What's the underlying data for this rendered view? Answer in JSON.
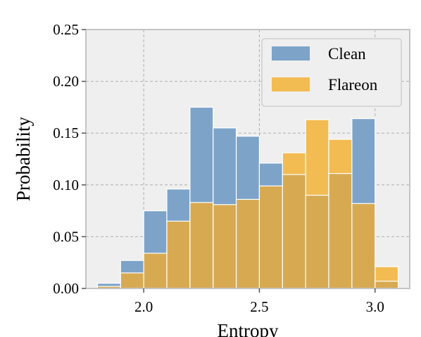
{
  "chart_data": {
    "type": "bar",
    "xlabel": "Entropy",
    "ylabel": "Probability",
    "xlim": [
      1.75,
      3.15
    ],
    "ylim": [
      0,
      0.25
    ],
    "xticks": [
      2.0,
      2.5,
      3.0
    ],
    "xtick_labels": [
      "2.0",
      "2.5",
      "3.0"
    ],
    "yticks": [
      0,
      0.05,
      0.1,
      0.15,
      0.2,
      0.25
    ],
    "ytick_labels": [
      "0.00",
      "0.05",
      "0.10",
      "0.15",
      "0.20",
      "0.25"
    ],
    "grid": true,
    "legend_position": "top-right",
    "bin_edges": [
      1.8,
      1.9,
      2.0,
      2.1,
      2.2,
      2.3,
      2.4,
      2.5,
      2.6,
      2.7,
      2.8,
      2.9,
      3.0,
      3.1
    ],
    "series": [
      {
        "name": "Clean",
        "color": "#7da3c8",
        "values": [
          0.005,
          0.027,
          0.075,
          0.096,
          0.175,
          0.155,
          0.147,
          0.121,
          0.11,
          0.09,
          0.111,
          0.164,
          0.007
        ]
      },
      {
        "name": "Flareon",
        "color": "#f2bc52",
        "values": [
          0.002,
          0.015,
          0.034,
          0.065,
          0.083,
          0.081,
          0.086,
          0.099,
          0.131,
          0.163,
          0.144,
          0.082,
          0.021
        ]
      }
    ],
    "overlap_color": "#d7aa52"
  }
}
